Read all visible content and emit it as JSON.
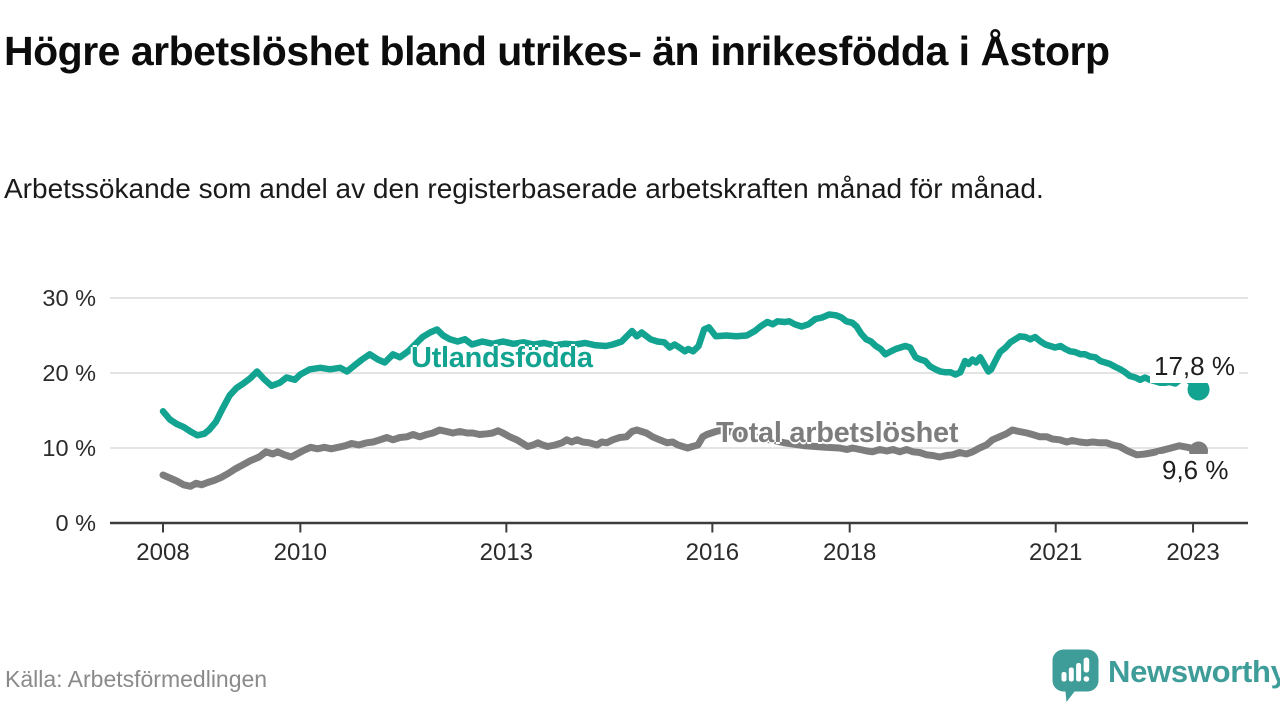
{
  "title": "Högre arbetslöshet bland utrikes- än inrikesfödda i Åstorp",
  "subtitle": "Arbetssökande som andel av den registerbaserade arbetskraften månad för månad.",
  "source": "Källa: Arbetsförmedlingen",
  "branding": {
    "name": "Newsworthy",
    "color": "#3E9D99"
  },
  "colors": {
    "accent_teal": "#12A391",
    "line_gray": "#7D7D7D",
    "grid": "#DCDCDC",
    "axis": "#3C3C3C",
    "tick_text": "#2B2B2B",
    "title_text": "#0C0C0C",
    "muted_text": "#8A8A8A"
  },
  "chart_data": {
    "type": "line",
    "title": "Högre arbetslöshet bland utrikes- än inrikesfödda i Åstorp",
    "subtitle": "Arbetssökande som andel av den registerbaserade arbetskraften månad för månad.",
    "xlabel": "",
    "ylabel": "",
    "grid": "horizontal",
    "legend_position": "inline-labels",
    "x_axis": {
      "ticks": [
        2008,
        2010,
        2013,
        2016,
        2018,
        2021,
        2023
      ],
      "labels": [
        "2008",
        "2010",
        "2013",
        "2016",
        "2018",
        "2021",
        "2023"
      ],
      "range": [
        2007.25,
        2023.8
      ]
    },
    "y_axis": {
      "ticks": [
        0,
        10,
        20,
        30
      ],
      "labels": [
        "0 %",
        "10 %",
        "20 %",
        "30 %"
      ],
      "range": [
        0,
        31
      ],
      "unit": "%"
    },
    "series": [
      {
        "name": "Utlandsfödda",
        "color": "#12A391",
        "end_label": "17,8 %",
        "end_value": 17.8,
        "x": [
          2008.0,
          2008.1,
          2008.2,
          2008.3,
          2008.4,
          2008.5,
          2008.6,
          2008.67,
          2008.77,
          2008.87,
          2008.97,
          2009.07,
          2009.17,
          2009.27,
          2009.37,
          2009.47,
          2009.58,
          2009.7,
          2009.8,
          2009.92,
          2010.0,
          2010.14,
          2010.29,
          2010.43,
          2010.58,
          2010.68,
          2010.8,
          2010.9,
          2011.01,
          2011.13,
          2011.23,
          2011.35,
          2011.45,
          2011.57,
          2011.67,
          2011.78,
          2011.89,
          2011.99,
          2012.08,
          2012.18,
          2012.29,
          2012.4,
          2012.5,
          2012.65,
          2012.8,
          2012.95,
          2013.1,
          2013.25,
          2013.4,
          2013.55,
          2013.7,
          2013.85,
          2014.0,
          2014.15,
          2014.3,
          2014.45,
          2014.55,
          2014.68,
          2014.83,
          2014.9,
          2014.97,
          2015.1,
          2015.2,
          2015.3,
          2015.38,
          2015.45,
          2015.52,
          2015.6,
          2015.65,
          2015.72,
          2015.8,
          2015.88,
          2015.95,
          2016.05,
          2016.2,
          2016.35,
          2016.5,
          2016.62,
          2016.7,
          2016.8,
          2016.88,
          2016.95,
          2017.05,
          2017.12,
          2017.2,
          2017.3,
          2017.4,
          2017.5,
          2017.6,
          2017.7,
          2017.8,
          2017.88,
          2017.95,
          2018.04,
          2018.1,
          2018.17,
          2018.24,
          2018.31,
          2018.38,
          2018.45,
          2018.52,
          2018.6,
          2018.67,
          2018.74,
          2018.81,
          2018.88,
          2018.96,
          2019.03,
          2019.1,
          2019.17,
          2019.25,
          2019.32,
          2019.4,
          2019.47,
          2019.54,
          2019.61,
          2019.68,
          2019.73,
          2019.79,
          2019.84,
          2019.9,
          2020.02,
          2020.06,
          2020.12,
          2020.19,
          2020.27,
          2020.34,
          2020.41,
          2020.48,
          2020.56,
          2020.63,
          2020.7,
          2020.78,
          2020.85,
          2020.92,
          2020.99,
          2021.07,
          2021.14,
          2021.21,
          2021.28,
          2021.36,
          2021.43,
          2021.5,
          2021.58,
          2021.65,
          2021.72,
          2021.79,
          2021.87,
          2021.94,
          2022.01,
          2022.08,
          2022.16,
          2022.23,
          2022.3,
          2022.37,
          2022.45,
          2022.52,
          2022.59,
          2022.66,
          2022.74,
          2022.81,
          2022.88,
          2022.95,
          2023.02,
          2023.08
        ],
        "values": [
          14.9,
          13.8,
          13.2,
          12.8,
          12.2,
          11.7,
          11.9,
          12.4,
          13.5,
          15.3,
          17.0,
          18.0,
          18.6,
          19.3,
          20.2,
          19.2,
          18.3,
          18.7,
          19.4,
          19.1,
          19.8,
          20.5,
          20.7,
          20.5,
          20.7,
          20.2,
          21.1,
          21.8,
          22.5,
          21.8,
          21.4,
          22.5,
          22.1,
          22.9,
          23.8,
          24.8,
          25.4,
          25.8,
          25.0,
          24.5,
          24.2,
          24.5,
          23.8,
          24.2,
          23.9,
          24.2,
          23.9,
          24.1,
          23.8,
          24.0,
          23.7,
          23.9,
          23.8,
          24.0,
          23.7,
          23.6,
          23.8,
          24.2,
          25.6,
          24.9,
          25.4,
          24.5,
          24.2,
          24.1,
          23.4,
          23.8,
          23.4,
          22.9,
          23.2,
          22.9,
          23.6,
          25.8,
          26.1,
          24.9,
          25.0,
          24.9,
          25.0,
          25.6,
          26.2,
          26.8,
          26.5,
          26.9,
          26.8,
          26.9,
          26.5,
          26.2,
          26.5,
          27.2,
          27.4,
          27.8,
          27.7,
          27.4,
          26.9,
          26.7,
          26.2,
          25.2,
          24.5,
          24.2,
          23.6,
          23.2,
          22.5,
          22.9,
          23.2,
          23.4,
          23.6,
          23.4,
          22.1,
          21.8,
          21.6,
          20.9,
          20.5,
          20.2,
          20.1,
          20.1,
          19.8,
          20.1,
          21.6,
          21.2,
          21.8,
          21.4,
          22.1,
          20.2,
          20.5,
          21.6,
          22.8,
          23.4,
          24.1,
          24.5,
          24.9,
          24.8,
          24.5,
          24.8,
          24.2,
          23.8,
          23.6,
          23.4,
          23.6,
          23.2,
          22.9,
          22.8,
          22.5,
          22.5,
          22.2,
          22.1,
          21.6,
          21.4,
          21.2,
          20.8,
          20.5,
          20.1,
          19.6,
          19.4,
          19.1,
          19.4,
          19.1,
          18.9,
          18.7,
          18.7,
          18.8,
          18.6,
          19.1,
          19.6,
          18.9,
          18.3,
          17.8
        ]
      },
      {
        "name": "Total arbetslöshet",
        "color": "#7D7D7D",
        "end_label": "9,6 %",
        "end_value": 9.6,
        "x": [
          2008.0,
          2008.1,
          2008.2,
          2008.3,
          2008.4,
          2008.48,
          2008.56,
          2008.65,
          2008.75,
          2008.85,
          2008.95,
          2009.05,
          2009.15,
          2009.27,
          2009.4,
          2009.5,
          2009.6,
          2009.67,
          2009.77,
          2009.87,
          2009.95,
          2010.05,
          2010.15,
          2010.25,
          2010.35,
          2010.45,
          2010.55,
          2010.65,
          2010.75,
          2010.85,
          2010.97,
          2011.06,
          2011.16,
          2011.26,
          2011.35,
          2011.45,
          2011.55,
          2011.64,
          2011.74,
          2011.84,
          2011.93,
          2012.03,
          2012.13,
          2012.22,
          2012.32,
          2012.43,
          2012.51,
          2012.61,
          2012.72,
          2012.8,
          2012.88,
          2012.95,
          2013.05,
          2013.15,
          2013.24,
          2013.31,
          2013.39,
          2013.46,
          2013.53,
          2013.6,
          2013.71,
          2013.81,
          2013.88,
          2013.95,
          2014.03,
          2014.11,
          2014.21,
          2014.32,
          2014.39,
          2014.46,
          2014.55,
          2014.65,
          2014.75,
          2014.83,
          2014.9,
          2014.97,
          2015.04,
          2015.13,
          2015.23,
          2015.34,
          2015.42,
          2015.5,
          2015.57,
          2015.64,
          2015.71,
          2015.79,
          2015.86,
          2015.92,
          2016.05,
          2016.15,
          2016.3,
          2016.45,
          2016.6,
          2016.75,
          2016.9,
          2017.05,
          2017.2,
          2017.35,
          2017.5,
          2017.65,
          2017.85,
          2017.96,
          2018.04,
          2018.15,
          2018.25,
          2018.33,
          2018.44,
          2018.54,
          2018.63,
          2018.73,
          2018.83,
          2018.92,
          2019.02,
          2019.12,
          2019.21,
          2019.31,
          2019.41,
          2019.5,
          2019.6,
          2019.7,
          2019.79,
          2019.89,
          2019.99,
          2020.08,
          2020.18,
          2020.28,
          2020.37,
          2020.47,
          2020.58,
          2020.66,
          2020.77,
          2020.87,
          2020.95,
          2021.06,
          2021.16,
          2021.24,
          2021.35,
          2021.45,
          2021.54,
          2021.64,
          2021.74,
          2021.83,
          2021.93,
          2022.05,
          2022.18,
          2022.3,
          2022.42,
          2022.55,
          2022.68,
          2022.8,
          2022.92,
          2023.02,
          2023.08
        ],
        "values": [
          6.4,
          6.0,
          5.6,
          5.1,
          4.9,
          5.3,
          5.1,
          5.4,
          5.7,
          6.1,
          6.6,
          7.2,
          7.7,
          8.3,
          8.8,
          9.5,
          9.2,
          9.5,
          9.1,
          8.8,
          9.2,
          9.7,
          10.1,
          9.9,
          10.1,
          9.9,
          10.1,
          10.3,
          10.6,
          10.4,
          10.7,
          10.8,
          11.1,
          11.4,
          11.1,
          11.4,
          11.5,
          11.8,
          11.5,
          11.8,
          12.0,
          12.4,
          12.2,
          12.0,
          12.2,
          12.0,
          12.0,
          11.8,
          11.9,
          12.0,
          12.3,
          12.0,
          11.5,
          11.1,
          10.6,
          10.2,
          10.4,
          10.7,
          10.4,
          10.2,
          10.4,
          10.7,
          11.1,
          10.8,
          11.1,
          10.8,
          10.7,
          10.4,
          10.8,
          10.7,
          11.1,
          11.4,
          11.5,
          12.2,
          12.4,
          12.2,
          12.0,
          11.5,
          11.1,
          10.7,
          10.8,
          10.4,
          10.2,
          10.0,
          10.2,
          10.4,
          11.5,
          11.8,
          12.2,
          12.4,
          12.1,
          11.8,
          11.5,
          11.2,
          11.0,
          10.7,
          10.5,
          10.3,
          10.2,
          10.1,
          10.0,
          9.8,
          10.0,
          9.8,
          9.6,
          9.5,
          9.8,
          9.6,
          9.8,
          9.5,
          9.8,
          9.5,
          9.4,
          9.1,
          9.0,
          8.8,
          9.0,
          9.1,
          9.4,
          9.2,
          9.5,
          10.0,
          10.4,
          11.1,
          11.5,
          11.9,
          12.4,
          12.2,
          12.0,
          11.8,
          11.5,
          11.5,
          11.2,
          11.1,
          10.8,
          11.0,
          10.8,
          10.7,
          10.8,
          10.7,
          10.7,
          10.4,
          10.2,
          9.6,
          9.1,
          9.2,
          9.4,
          9.7,
          10.0,
          10.3,
          10.1,
          9.9,
          9.6
        ]
      }
    ]
  }
}
